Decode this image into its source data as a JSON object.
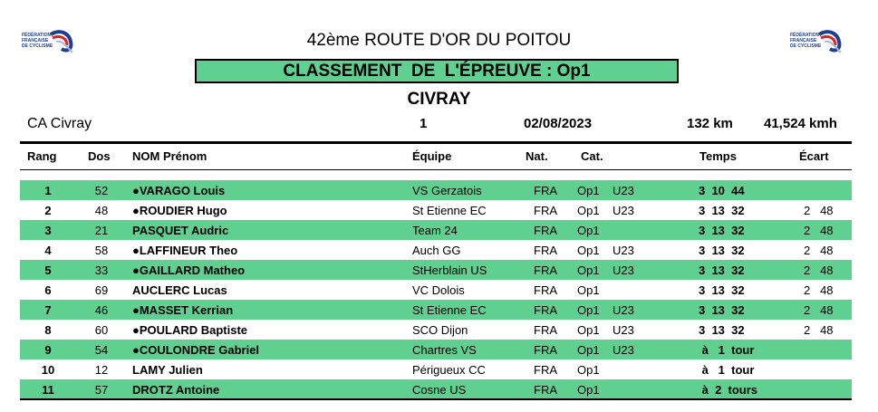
{
  "logos": {
    "left": {
      "icon": "ffc-logo-icon",
      "lines": [
        "FÉDÉRATION",
        "FRANÇAISE",
        "DE CYCLISME"
      ]
    },
    "right": {
      "icon": "ffc-logo-icon",
      "lines": [
        "FÉDÉRATION",
        "FRANÇAISE",
        "DE CYCLISME"
      ]
    }
  },
  "title": {
    "edition": "42ème",
    "name": "ROUTE D'OR DU POITOU"
  },
  "ranking_label": "CLASSEMENT  DE  L'ÉPREUVE : Op1",
  "city": "CIVRAY",
  "info": {
    "club": "CA Civray",
    "stage": "1",
    "date": "02/08/2023",
    "distance": "132 km",
    "speed": "41,524 kmh"
  },
  "columns": {
    "rank": "Rang",
    "dos": "Dos",
    "name": "NOM Prénom",
    "team": "Équipe",
    "nat": "Nat.",
    "cat": "Cat.",
    "time": "Temps",
    "gap": "Écart"
  },
  "results": [
    {
      "rank": "1",
      "dos": "52",
      "name": "●VARAGO Louis",
      "team": "VS Gerzatois",
      "nat": "FRA",
      "cat": "Op1",
      "u23": "U23",
      "time": "3  10  44",
      "gap": ""
    },
    {
      "rank": "2",
      "dos": "48",
      "name": "●ROUDIER Hugo",
      "team": "St Etienne EC",
      "nat": "FRA",
      "cat": "Op1",
      "u23": "U23",
      "time": "3  13  32",
      "gap": "2   48"
    },
    {
      "rank": "3",
      "dos": "21",
      "name": "PASQUET Audric",
      "team": "Team 24",
      "nat": "FRA",
      "cat": "Op1",
      "u23": "",
      "time": "3  13  32",
      "gap": "2   48"
    },
    {
      "rank": "4",
      "dos": "58",
      "name": "●LAFFINEUR Theo",
      "team": "Auch GG",
      "nat": "FRA",
      "cat": "Op1",
      "u23": "U23",
      "time": "3  13  32",
      "gap": "2   48"
    },
    {
      "rank": "5",
      "dos": "33",
      "name": "●GAILLARD Matheo",
      "team": "StHerblain US",
      "nat": "FRA",
      "cat": "Op1",
      "u23": "U23",
      "time": "3  13  32",
      "gap": "2   48"
    },
    {
      "rank": "6",
      "dos": "69",
      "name": "AUCLERC Lucas",
      "team": "VC Dolois",
      "nat": "FRA",
      "cat": "Op1",
      "u23": "",
      "time": "3  13  32",
      "gap": "2   48"
    },
    {
      "rank": "7",
      "dos": "46",
      "name": "●MASSET Kerrian",
      "team": "St Etienne EC",
      "nat": "FRA",
      "cat": "Op1",
      "u23": "U23",
      "time": "3  13  32",
      "gap": "2   48"
    },
    {
      "rank": "8",
      "dos": "60",
      "name": "●POULARD Baptiste",
      "team": "SCO Dijon",
      "nat": "FRA",
      "cat": "Op1",
      "u23": "U23",
      "time": "3  13  32",
      "gap": "2   48"
    },
    {
      "rank": "9",
      "dos": "54",
      "name": "●COULONDRE Gabriel",
      "team": "Chartres VS",
      "nat": "FRA",
      "cat": "Op1",
      "u23": "U23",
      "time": " à   1  tour",
      "gap": ""
    },
    {
      "rank": "10",
      "dos": "12",
      "name": "LAMY Julien",
      "team": "Périgueux CC",
      "nat": "FRA",
      "cat": "Op1",
      "u23": "",
      "time": " à   1  tour",
      "gap": ""
    },
    {
      "rank": "11",
      "dos": "57",
      "name": "DROTZ Antoine",
      "team": "Cosne US",
      "nat": "FRA",
      "cat": "Op1",
      "u23": "",
      "time": " à  2  tours",
      "gap": ""
    }
  ],
  "colors": {
    "shade": "#5fd08f",
    "logo_blue": "#1d3f93",
    "logo_red": "#d8262c"
  }
}
